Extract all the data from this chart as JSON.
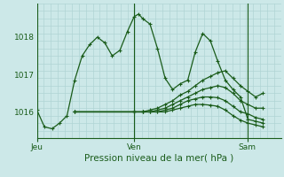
{
  "xlabel": "Pression niveau de la mer( hPa )",
  "background_color": "#cce8e8",
  "grid_color": "#b0d4d4",
  "line_color": "#1a5c1a",
  "yticks": [
    1016,
    1017,
    1018
  ],
  "ylim": [
    1015.3,
    1018.9
  ],
  "xlim": [
    0.0,
    1.08
  ],
  "xtick_labels": [
    "Jeu",
    "Ven",
    "Sam"
  ],
  "xtick_positions": [
    0.0,
    0.43,
    0.93
  ],
  "day_vlines": [
    0.0,
    0.43,
    0.93
  ],
  "series": [
    {
      "x": [
        0.0,
        0.033,
        0.067,
        0.1,
        0.133,
        0.167,
        0.2,
        0.233,
        0.267,
        0.3,
        0.333,
        0.367,
        0.4,
        0.43,
        0.45,
        0.467,
        0.5,
        0.533,
        0.567,
        0.6,
        0.633,
        0.667,
        0.7,
        0.733,
        0.767,
        0.8,
        0.833,
        0.867,
        0.9,
        0.933,
        0.967,
        1.0
      ],
      "y": [
        1016.05,
        1015.6,
        1015.55,
        1015.7,
        1015.9,
        1016.85,
        1017.5,
        1017.8,
        1018.0,
        1017.85,
        1017.5,
        1017.65,
        1018.15,
        1018.55,
        1018.62,
        1018.5,
        1018.35,
        1017.7,
        1016.9,
        1016.6,
        1016.75,
        1016.85,
        1017.6,
        1018.1,
        1017.9,
        1017.35,
        1016.85,
        1016.6,
        1016.4,
        1015.8,
        1015.75,
        1015.7
      ]
    },
    {
      "x": [
        0.167,
        0.43,
        0.467,
        0.5,
        0.533,
        0.567,
        0.6,
        0.633,
        0.667,
        0.7,
        0.733,
        0.767,
        0.8,
        0.833,
        0.867,
        0.9,
        0.933,
        0.967,
        1.0
      ],
      "y": [
        1016.0,
        1016.0,
        1016.0,
        1016.05,
        1016.1,
        1016.2,
        1016.3,
        1016.45,
        1016.55,
        1016.7,
        1016.85,
        1016.95,
        1017.05,
        1017.1,
        1016.9,
        1016.7,
        1016.55,
        1016.4,
        1016.5
      ]
    },
    {
      "x": [
        0.167,
        0.43,
        0.467,
        0.5,
        0.533,
        0.567,
        0.6,
        0.633,
        0.667,
        0.7,
        0.733,
        0.767,
        0.8,
        0.833,
        0.867,
        0.9,
        0.933,
        0.967,
        1.0
      ],
      "y": [
        1016.0,
        1016.0,
        1016.0,
        1016.0,
        1016.05,
        1016.1,
        1016.2,
        1016.3,
        1016.4,
        1016.5,
        1016.6,
        1016.65,
        1016.7,
        1016.65,
        1016.5,
        1016.3,
        1016.2,
        1016.1,
        1016.1
      ]
    },
    {
      "x": [
        0.167,
        0.43,
        0.467,
        0.5,
        0.533,
        0.567,
        0.6,
        0.633,
        0.667,
        0.7,
        0.733,
        0.767,
        0.8,
        0.833,
        0.867,
        0.9,
        0.933,
        0.967,
        1.0
      ],
      "y": [
        1016.0,
        1016.0,
        1016.0,
        1016.0,
        1016.0,
        1016.05,
        1016.1,
        1016.2,
        1016.3,
        1016.35,
        1016.4,
        1016.4,
        1016.38,
        1016.3,
        1016.15,
        1016.0,
        1015.95,
        1015.85,
        1015.8
      ]
    },
    {
      "x": [
        0.167,
        0.43,
        0.467,
        0.5,
        0.533,
        0.567,
        0.6,
        0.633,
        0.667,
        0.7,
        0.733,
        0.767,
        0.8,
        0.833,
        0.867,
        0.9,
        0.933,
        0.967,
        1.0
      ],
      "y": [
        1016.0,
        1016.0,
        1016.0,
        1016.0,
        1016.0,
        1016.0,
        1016.05,
        1016.1,
        1016.15,
        1016.2,
        1016.2,
        1016.18,
        1016.15,
        1016.05,
        1015.9,
        1015.78,
        1015.7,
        1015.65,
        1015.6
      ]
    }
  ]
}
